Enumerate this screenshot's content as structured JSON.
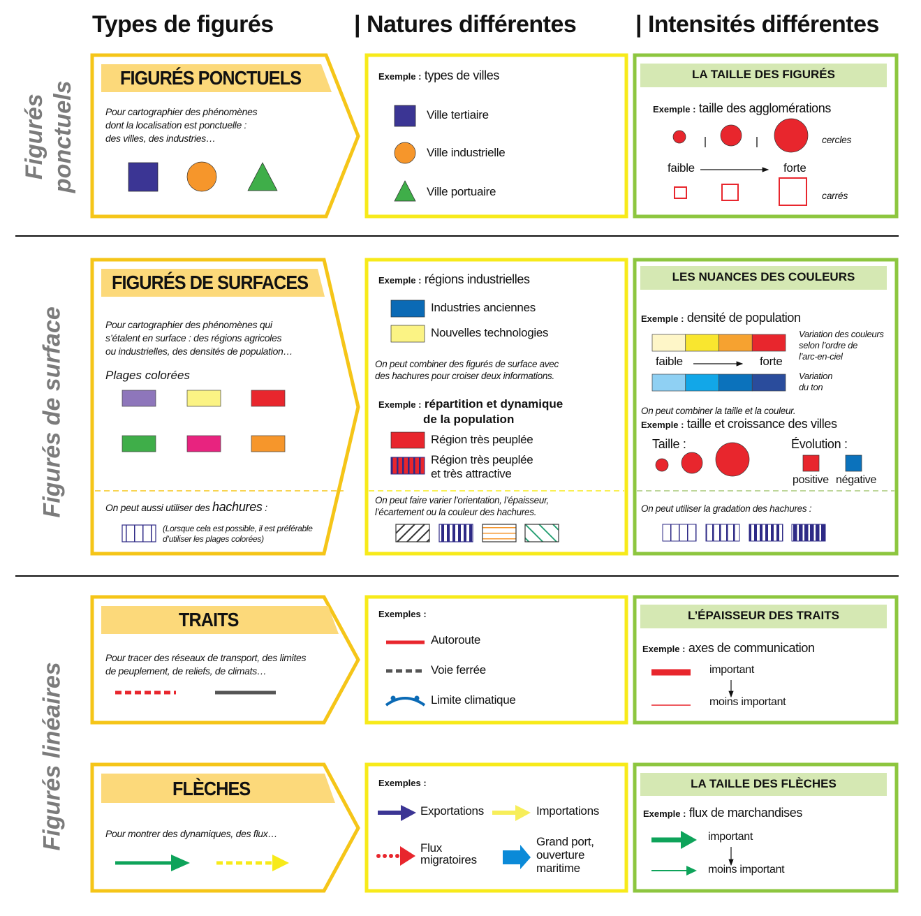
{
  "header": {
    "col1": "Types de figurés",
    "col2": "| Natures différentes",
    "col3": "| Intensités différentes"
  },
  "side_labels": {
    "ponctuels_1": "Figurés",
    "ponctuels_2": "ponctuels",
    "surface": "Figurés de surface",
    "lineaires": "Figurés linéaires"
  },
  "colors": {
    "gold_border": "#f5c518",
    "yellow_border": "#f7ea1a",
    "green_border": "#8dc63f",
    "title_bar": "#fcd97a",
    "green_bar": "#d5e8b3",
    "navy": "#3b3594",
    "orange": "#f6962b",
    "green": "#3fae49",
    "red": "#e8262d",
    "blue": "#0b6ab5"
  },
  "ponctuels": {
    "title": "FIGURÉS PONCTUELS",
    "desc": [
      "Pour cartographier des phénomènes",
      "dont la localisation est ponctuelle :",
      "des villes, des industries…"
    ],
    "natures": {
      "ex_label": "Exemple :",
      "ex_value": "types de villes",
      "items": [
        "Ville tertiaire",
        "Ville industrielle",
        "Ville portuaire"
      ]
    },
    "intensites": {
      "bar": "LA TAILLE DES FIGURÉS",
      "ex_label": "Exemple :",
      "ex_value": "taille des agglomérations",
      "cercles": "cercles",
      "carres": "carrés",
      "faible": "faible",
      "forte": "forte"
    }
  },
  "surfaces": {
    "title": "FIGURÉS DE SURFACES",
    "desc": [
      "Pour cartographier des phénomènes qui",
      "s’étalent en surface : des régions agricoles",
      "ou industrielles, des densités de population…"
    ],
    "plages": "Plages colorées",
    "plage_colors": [
      "#8e76bb",
      "#fbf384",
      "#e8262d",
      "#3fae49",
      "#e8237f",
      "#f6962b"
    ],
    "hachures_pre": "On peut aussi utiliser des ",
    "hachures_word": "hachures",
    "hachures_post": " :",
    "hachures_note": [
      "(Lorsque cela est possible, il est préférable",
      "d’utiliser les plages colorées)"
    ],
    "natures": {
      "ex_label": "Exemple :",
      "ex_value": "régions industrielles",
      "items": [
        "Industries anciennes",
        "Nouvelles technologies"
      ],
      "combine": [
        "On peut combiner des figurés de surface avec",
        "des hachures pour croiser deux informations."
      ],
      "ex2_label": "Exemple :",
      "ex2_value_1": "répartition et dynamique",
      "ex2_value_2": "de la population",
      "items2": [
        "Région très peuplée",
        "Région très peuplée",
        "et très attractive"
      ],
      "vary": [
        "On peut faire varier l’orientation, l’épaisseur,",
        "l’écartement ou la couleur des hachures."
      ]
    },
    "intensites": {
      "bar": "LES NUANCES DES COULEURS",
      "ex_label": "Exemple :",
      "ex_value": "densité de population",
      "warm_scale": [
        "#fef6c8",
        "#f9e62f",
        "#f6a230",
        "#e8262d"
      ],
      "cool_scale": [
        "#8fd0f3",
        "#12a7e8",
        "#0b72bc",
        "#2a4c9c"
      ],
      "faible": "faible",
      "forte": "forte",
      "note1": [
        "Variation des couleurs",
        "selon l’ordre de",
        "l’arc-en-ciel"
      ],
      "note2": [
        "Variation",
        "du ton"
      ],
      "combine": "On peut combiner la taille et la couleur.",
      "ex2_label": "Exemple :",
      "ex2_value": "taille et croissance des villes",
      "taille": "Taille :",
      "evolution": "Évolution :",
      "positive": "positive",
      "negative": "négative",
      "gradation": "On peut utiliser la gradation des hachures :"
    }
  },
  "traits": {
    "title": "TRAITS",
    "desc": [
      "Pour tracer des réseaux de transport, des limites",
      "de peuplement, de reliefs, de climats…"
    ],
    "natures": {
      "ex_label": "Exemples :",
      "items": [
        "Autoroute",
        "Voie ferrée",
        "Limite climatique"
      ]
    },
    "intensites": {
      "bar": "L’ÉPAISSEUR DES TRAITS",
      "ex_label": "Exemple :",
      "ex_value": "axes de communication",
      "important": "important",
      "moins": "moins important"
    }
  },
  "fleches": {
    "title": "FLÈCHES",
    "desc": [
      "Pour montrer des dynamiques, des flux…"
    ],
    "natures": {
      "ex_label": "Exemples :",
      "exportations": "Exportations",
      "importations": "Importations",
      "flux": [
        "Flux",
        "migratoires"
      ],
      "port": [
        "Grand port,",
        "ouverture",
        "maritime"
      ]
    },
    "intensites": {
      "bar": "LA TAILLE DES FLÈCHES",
      "ex_label": "Exemple :",
      "ex_value": "flux de marchandises",
      "important": "important",
      "moins": "moins important"
    }
  }
}
